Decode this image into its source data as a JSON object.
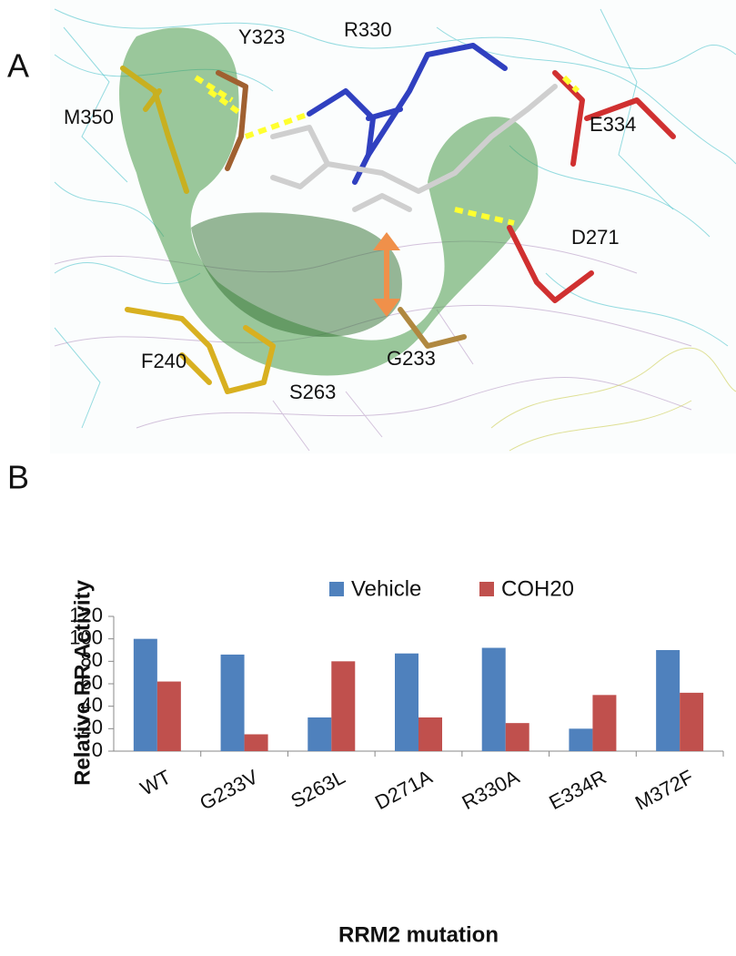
{
  "panel_a": {
    "letter": "A",
    "labels": [
      "Y323",
      "R330",
      "M350",
      "E334",
      "D271",
      "F240",
      "G233",
      "S263"
    ]
  },
  "panel_b_letter": "B",
  "chart_data": {
    "type": "bar",
    "categories": [
      "WT",
      "G233V",
      "S263L",
      "D271A",
      "R330A",
      "E334R",
      "M372F"
    ],
    "series": [
      {
        "name": "Vehicle",
        "color": "#4f81bd",
        "values": [
          100,
          86,
          30,
          87,
          92,
          20,
          90
        ]
      },
      {
        "name": "COH20",
        "color": "#c0504d",
        "values": [
          62,
          15,
          80,
          30,
          25,
          50,
          52
        ]
      }
    ],
    "ylabel": "Relative RR Activity",
    "xlabel": "RRM2 mutation",
    "ylim": [
      0,
      120
    ],
    "yticks": [
      0,
      20,
      40,
      60,
      80,
      100,
      120
    ],
    "grid": false,
    "legend": "top"
  }
}
